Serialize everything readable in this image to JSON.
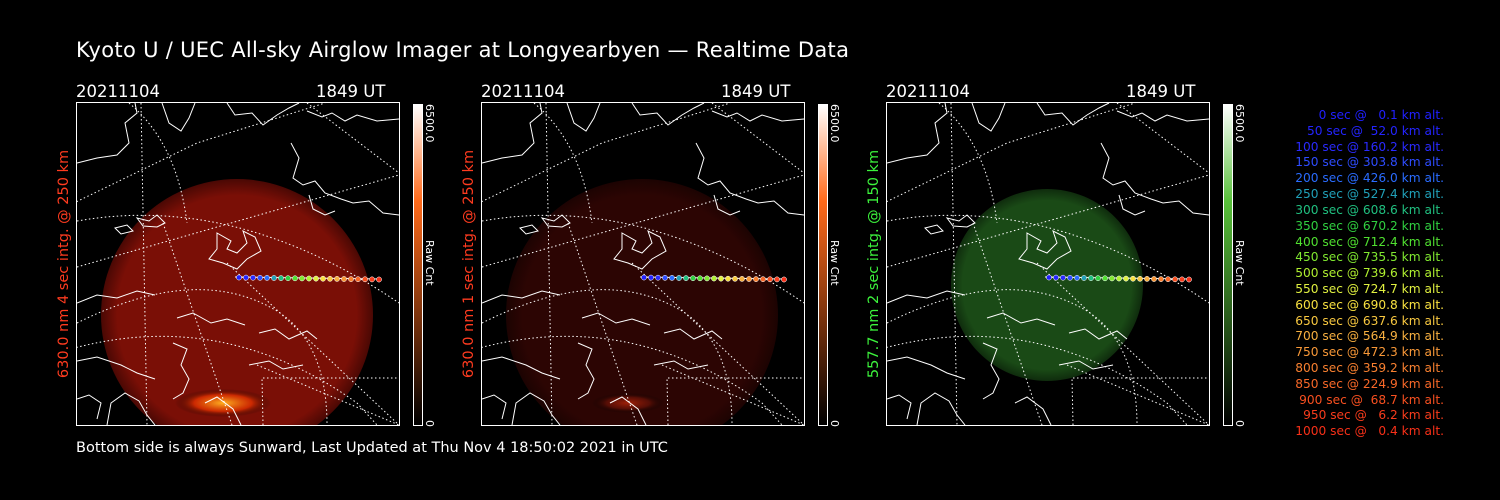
{
  "title": "Kyoto U / UEC All-sky Airglow Imager at Longyearbyen — Realtime Data",
  "footer": "Bottom side is always Sunward, Last Updated at Thu Nov  4 18:50:02 2021 in UTC",
  "panels": [
    {
      "date": "20211104",
      "time": "1849 UT",
      "ylabel": "630.0 nm 4 sec intg. @ 250 km",
      "label_color": "#ff3b1f",
      "cb_max": "6500.0",
      "cb_min": "0",
      "cb_unit": "Raw Cnt",
      "cb_top": "#ffffff",
      "cb_mid": "#ff6a1a",
      "cb_bottom": "#000000",
      "disk_color": "#7a0f06",
      "disk_edge": "#4a0804",
      "glow": true
    },
    {
      "date": "20211104",
      "time": "1849 UT",
      "ylabel": "630.0 nm 1 sec intg. @ 250 km",
      "label_color": "#ff3b1f",
      "cb_max": "6500.0",
      "cb_min": "0",
      "cb_unit": "Raw Cnt",
      "cb_top": "#ffffff",
      "cb_mid": "#ff6a1a",
      "cb_bottom": "#000000",
      "disk_color": "#2c0503",
      "disk_edge": "#1c0302",
      "glow": true
    },
    {
      "date": "20211104",
      "time": "1849 UT",
      "ylabel": "557.7 nm 2 sec intg. @ 150 km",
      "label_color": "#3cf23c",
      "cb_max": "6500.0",
      "cb_min": "0",
      "cb_unit": "Raw Cnt",
      "cb_top": "#ffffff",
      "cb_mid": "#58c03a",
      "cb_bottom": "#000000",
      "disk_color": "#1a4a16",
      "disk_edge": "#0f2c0d",
      "glow": false
    }
  ],
  "legend": [
    {
      "text": "0 sec @   0.1 km alt.",
      "color": "#2020ff"
    },
    {
      "text": "50 sec @  52.0 km alt.",
      "color": "#2424ff"
    },
    {
      "text": "100 sec @ 160.2 km alt.",
      "color": "#2a2aff"
    },
    {
      "text": "150 sec @ 303.8 km alt.",
      "color": "#2e4cff"
    },
    {
      "text": "200 sec @ 426.0 km alt.",
      "color": "#2a6cff"
    },
    {
      "text": "250 sec @ 527.4 km alt.",
      "color": "#20a0b8"
    },
    {
      "text": "300 sec @ 608.6 km alt.",
      "color": "#20c080"
    },
    {
      "text": "350 sec @ 670.2 km alt.",
      "color": "#30d040"
    },
    {
      "text": "400 sec @ 712.4 km alt.",
      "color": "#50e030"
    },
    {
      "text": "450 sec @ 735.5 km alt.",
      "color": "#80e830"
    },
    {
      "text": "500 sec @ 739.6 km alt.",
      "color": "#b0f030"
    },
    {
      "text": "550 sec @ 724.7 km alt.",
      "color": "#e0f040"
    },
    {
      "text": "600 sec @ 690.8 km alt.",
      "color": "#f8e040"
    },
    {
      "text": "650 sec @ 637.6 km alt.",
      "color": "#f8c840"
    },
    {
      "text": "700 sec @ 564.9 km alt.",
      "color": "#f8b040"
    },
    {
      "text": "750 sec @ 472.3 km alt.",
      "color": "#f89838"
    },
    {
      "text": "800 sec @ 359.2 km alt.",
      "color": "#f88030"
    },
    {
      "text": "850 sec @ 224.9 km alt.",
      "color": "#f86828"
    },
    {
      "text": "900 sec @  68.7 km alt.",
      "color": "#f85020"
    },
    {
      "text": "950 sec @   6.2 km alt.",
      "color": "#f83c1c"
    },
    {
      "text": "1000 sec @   0.4 km alt.",
      "color": "#f83018"
    }
  ]
}
